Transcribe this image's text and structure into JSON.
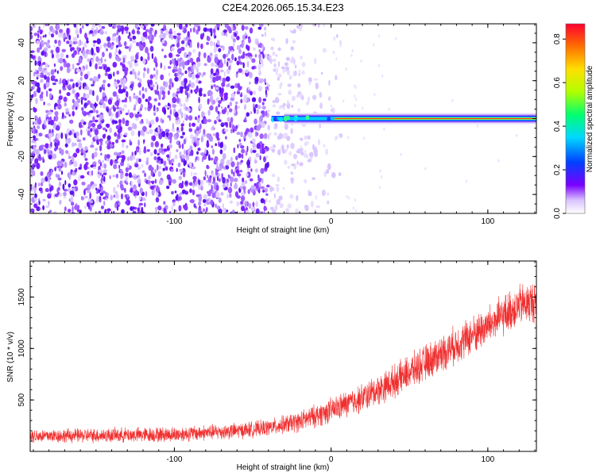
{
  "figure": {
    "title": "C2E4.2026.065.15.34.E23"
  },
  "chart_data": [
    {
      "type": "heatmap",
      "panel": "spectrogram",
      "xlabel": "Height of straight line (km)",
      "ylabel": "Frequency (Hz)",
      "xlim": [
        -192,
        131
      ],
      "ylim": [
        -50,
        50
      ],
      "xticks": [
        -100,
        0,
        100
      ],
      "yticks": [
        -40,
        -20,
        0,
        20,
        40
      ],
      "colorbar": {
        "label": "Normalized spectral amplitude",
        "range": [
          0,
          0.87
        ],
        "ticks": [
          0,
          0.2,
          0.4,
          0.6,
          0.8
        ]
      },
      "features": {
        "broadband_noise_region_x": [
          -192,
          0
        ],
        "narrowband_line_frequency": 0,
        "narrowband_line_start_x": -38,
        "narrowband_line_end_x": 131
      }
    },
    {
      "type": "line",
      "panel": "snr",
      "xlabel": "Height of straight line (km)",
      "ylabel": "SNR (10 * v/v)",
      "xlim": [
        -192,
        131
      ],
      "ylim": [
        0,
        1850
      ],
      "xticks": [
        -100,
        0,
        100
      ],
      "yticks": [
        500,
        1000,
        1500
      ],
      "color": "#f03030",
      "trend": {
        "x": [
          -192,
          -150,
          -100,
          -60,
          -40,
          -20,
          0,
          20,
          40,
          60,
          80,
          100,
          110,
          120,
          131
        ],
        "y": [
          150,
          155,
          165,
          200,
          230,
          290,
          400,
          520,
          680,
          860,
          1040,
          1220,
          1320,
          1420,
          1460
        ]
      },
      "noise_amplitude": {
        "x": [
          -192,
          -40,
          0,
          60,
          131
        ],
        "y": [
          110,
          130,
          200,
          290,
          340
        ]
      }
    }
  ]
}
